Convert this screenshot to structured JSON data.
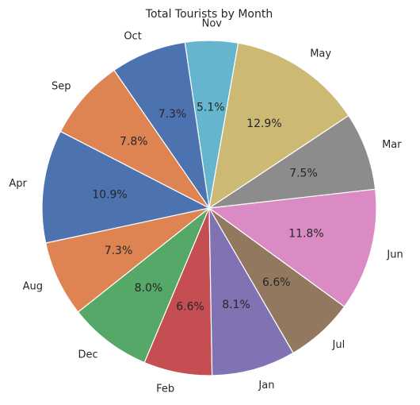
{
  "chart_data": {
    "type": "pie",
    "title": "Total Tourists by Month",
    "slices": [
      {
        "label": "Nov",
        "percent": 5.1,
        "color": "#64b5cd"
      },
      {
        "label": "Oct",
        "percent": 7.3,
        "color": "#4c72b0"
      },
      {
        "label": "Sep",
        "percent": 7.8,
        "color": "#dd8452"
      },
      {
        "label": "Apr",
        "percent": 10.9,
        "color": "#4c72b0"
      },
      {
        "label": "Aug",
        "percent": 7.3,
        "color": "#dd8452"
      },
      {
        "label": "Dec",
        "percent": 8.0,
        "color": "#55a868"
      },
      {
        "label": "Feb",
        "percent": 6.6,
        "color": "#c44e52"
      },
      {
        "label": "Jan",
        "percent": 8.1,
        "color": "#8172b3"
      },
      {
        "label": "Jul",
        "percent": 6.6,
        "color": "#937860"
      },
      {
        "label": "Jun",
        "percent": 11.8,
        "color": "#da8bc3"
      },
      {
        "label": "Mar",
        "percent": 7.5,
        "color": "#8c8c8c"
      },
      {
        "label": "May",
        "percent": 12.9,
        "color": "#ccb974"
      }
    ],
    "start_angle_deg": 80,
    "direction": "counterclockwise",
    "legend": "none"
  }
}
